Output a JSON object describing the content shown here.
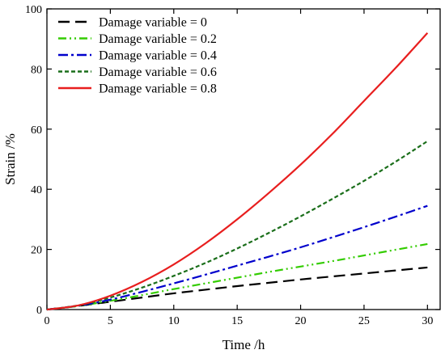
{
  "chart_data": {
    "type": "line",
    "title": "",
    "xlabel": "Time /h",
    "ylabel": "Strain /%",
    "xlim": [
      0,
      31
    ],
    "ylim": [
      0,
      100
    ],
    "xticks": [
      0,
      5,
      10,
      15,
      20,
      25,
      30
    ],
    "yticks": [
      0,
      20,
      40,
      60,
      80,
      100
    ],
    "grid": false,
    "legend_position": "top-left",
    "x": [
      0,
      2.5,
      5,
      7.5,
      10,
      12.5,
      15,
      17.5,
      20,
      22.5,
      25,
      27.5,
      30
    ],
    "series": [
      {
        "name": "Damage variable = 0",
        "color": "#000000",
        "dash": "long-dash",
        "values": [
          0,
          1.2,
          2.6,
          4.0,
          5.4,
          6.6,
          7.8,
          8.9,
          10.0,
          11.0,
          12.0,
          13.0,
          14.0
        ]
      },
      {
        "name": "Damage variable = 0.2",
        "color": "#33cc00",
        "dash": "dash-dot-dot",
        "values": [
          0,
          1.2,
          2.9,
          4.8,
          6.8,
          8.7,
          10.6,
          12.5,
          14.3,
          16.1,
          18.0,
          19.9,
          21.8
        ]
      },
      {
        "name": "Damage variable = 0.4",
        "color": "#0000cc",
        "dash": "dash-dot",
        "values": [
          0,
          1.3,
          3.3,
          5.9,
          8.7,
          11.6,
          14.6,
          17.6,
          20.7,
          24.0,
          27.4,
          30.9,
          34.5
        ]
      },
      {
        "name": "Damage variable = 0.6",
        "color": "#1a6e1a",
        "dash": "short-dash",
        "values": [
          0,
          1.4,
          4.0,
          7.3,
          11.2,
          15.5,
          20.3,
          25.5,
          31.0,
          36.8,
          42.8,
          49.2,
          56.0
        ]
      },
      {
        "name": "Damage variable = 0.8",
        "color": "#e81e1e",
        "dash": "solid",
        "values": [
          0,
          1.4,
          4.6,
          9.2,
          15.0,
          22.0,
          30.0,
          38.8,
          48.2,
          58.4,
          69.4,
          80.4,
          92.0
        ]
      }
    ]
  }
}
